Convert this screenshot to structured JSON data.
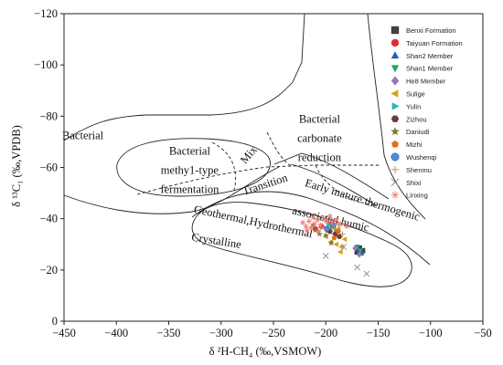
{
  "chart_data": {
    "type": "scatter",
    "xlabel": "δ ²H-CH₄ (‰,VSMOW)",
    "ylabel": "δ ¹³C₁ (‰,VPDB)",
    "xlim": [
      -450,
      -50
    ],
    "ylim": [
      0,
      -120
    ],
    "x_ticks": [
      -450,
      -400,
      -350,
      -300,
      -250,
      -200,
      -150,
      -100,
      -50
    ],
    "y_ticks": [
      0,
      -20,
      -40,
      -60,
      -80,
      -100,
      -120
    ],
    "x_tick_labels": [
      "−450",
      "−400",
      "−350",
      "−300",
      "−250",
      "−200",
      "−150",
      "−100",
      "−50"
    ],
    "y_tick_labels": [
      "0",
      "−20",
      "−40",
      "−60",
      "−80",
      "−100",
      "−120"
    ],
    "grid": false,
    "legend_position": "top-right",
    "field_labels": [
      {
        "text": "Bacterial",
        "x": -432,
        "y": -71
      },
      {
        "text": "Bacterial",
        "x": -330,
        "y": -65
      },
      {
        "text": "methy1-type",
        "x": -330,
        "y": -57.5
      },
      {
        "text": "fermentation",
        "x": -330,
        "y": -50
      },
      {
        "text": "Mix",
        "x": -271,
        "y": -64
      },
      {
        "text": "Bacterial",
        "x": -206,
        "y": -77.5
      },
      {
        "text": "carbonate",
        "x": -206,
        "y": -70
      },
      {
        "text": "reduction",
        "x": -206,
        "y": -62.5
      },
      {
        "text": "Transition",
        "x": -257,
        "y": -52
      },
      {
        "text": "Early mature thermogenic",
        "x": -166,
        "y": -46
      },
      {
        "text": "associated humic",
        "x": -196,
        "y": -38.5
      },
      {
        "text": "Geothermal,Hydrothermal",
        "x": -270,
        "y": -37.5
      },
      {
        "text": "Crystalline",
        "x": -305,
        "y": -30
      }
    ],
    "series": [
      {
        "name": "Benxi Formation",
        "color": "#404040",
        "marker": "square",
        "points": [
          [
            -168,
            -28.5
          ],
          [
            -165,
            -27.5
          ],
          [
            -170,
            -27
          ]
        ]
      },
      {
        "name": "Taiyuan Formation",
        "color": "#e0302f",
        "marker": "circle",
        "points": [
          [
            -204,
            -37
          ],
          [
            -210,
            -36
          ],
          [
            -198,
            -35.5
          ],
          [
            -195,
            -38
          ]
        ]
      },
      {
        "name": "Shan2 Member",
        "color": "#1f5fbf",
        "marker": "triangle-up",
        "points": [
          [
            -168,
            -28
          ],
          [
            -166,
            -26.5
          ]
        ]
      },
      {
        "name": "Shan1 Member",
        "color": "#1aa86a",
        "marker": "triangle-down",
        "points": [
          [
            -170,
            -29
          ],
          [
            -167,
            -27.5
          ]
        ]
      },
      {
        "name": "He8 Member",
        "color": "#9c6fc0",
        "marker": "diamond",
        "points": [
          [
            -172,
            -28.5
          ],
          [
            -168,
            -26
          ]
        ]
      },
      {
        "name": "Sulige",
        "color": "#d8a21a",
        "marker": "triangle-left",
        "points": [
          [
            -200,
            -33
          ],
          [
            -195,
            -31
          ],
          [
            -190,
            -30
          ],
          [
            -185,
            -29
          ],
          [
            -192,
            -34
          ],
          [
            -188,
            -36
          ],
          [
            -182,
            -32
          ],
          [
            -197,
            -36
          ],
          [
            -186,
            -27
          ]
        ]
      },
      {
        "name": "Yulin",
        "color": "#2cb5b5",
        "marker": "triangle-right",
        "points": [
          [
            -197,
            -37.5
          ],
          [
            -190,
            -35.5
          ]
        ]
      },
      {
        "name": "Zizhou",
        "color": "#6b3b3b",
        "marker": "hexagon",
        "points": [
          [
            -196,
            -35
          ],
          [
            -191,
            -34
          ],
          [
            -187,
            -33
          ]
        ]
      },
      {
        "name": "Daniudi",
        "color": "#7a7a2a",
        "marker": "star",
        "points": [
          [
            -212,
            -37.5
          ],
          [
            -206,
            -34
          ],
          [
            -200,
            -33.5
          ],
          [
            -195,
            -30.5
          ],
          [
            -210,
            -35.5
          ]
        ]
      },
      {
        "name": "Mizhi",
        "color": "#e36d1d",
        "marker": "pentagon",
        "points": [
          [
            -192,
            -32.5
          ],
          [
            -188,
            -35
          ]
        ]
      },
      {
        "name": "Wushenqi",
        "color": "#4b8fd1",
        "marker": "sphere",
        "points": [
          [
            -199,
            -36
          ],
          [
            -193,
            -37
          ]
        ]
      },
      {
        "name": "Shenmu",
        "color": "#b89a5a",
        "marker": "plus",
        "points": [
          [
            -205,
            -36.5
          ],
          [
            -199,
            -38.5
          ],
          [
            -192,
            -36
          ],
          [
            -184,
            -34
          ],
          [
            -188,
            -37.5
          ]
        ]
      },
      {
        "name": "Shixi",
        "color": "#8a8a8a",
        "marker": "cross",
        "points": [
          [
            -200,
            -25.5
          ],
          [
            -170,
            -21
          ],
          [
            -161,
            -18.5
          ],
          [
            -183,
            -29
          ]
        ]
      },
      {
        "name": "Linxing",
        "color": "#ef7b7b",
        "marker": "asterisk",
        "points": [
          [
            -222,
            -38.5
          ],
          [
            -219,
            -37
          ],
          [
            -216,
            -39
          ],
          [
            -214,
            -36.5
          ],
          [
            -211,
            -38
          ],
          [
            -208,
            -39.5
          ],
          [
            -205,
            -37.5
          ],
          [
            -202,
            -40
          ],
          [
            -199,
            -39
          ],
          [
            -196,
            -41
          ],
          [
            -194,
            -38.5
          ],
          [
            -218,
            -35.5
          ],
          [
            -212,
            -40.5
          ],
          [
            -207,
            -35
          ],
          [
            -190,
            -39.5
          ],
          [
            -186,
            -38
          ],
          [
            -180,
            -37
          ]
        ]
      }
    ]
  }
}
